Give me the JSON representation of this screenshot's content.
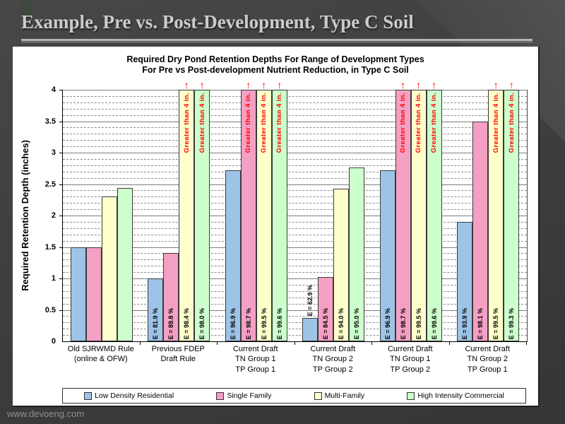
{
  "slide": {
    "title": "Example, Pre vs. Post-Development, Type C Soil",
    "footer_url": "www.devoeng.com"
  },
  "chart": {
    "title_line1": "Required Dry Pond Retention Depths For Range of Development Types",
    "title_line2": "For Pre vs Post-development Nutrient Reduction, in Type C Soil"
  },
  "chart_data": {
    "type": "bar",
    "title": "Required Dry Pond Retention Depths For Range of Development Types For Pre vs Post-development Nutrient Reduction, in Type C Soil",
    "ylabel": "Required Retention Depth (inches)",
    "ylim": [
      0,
      4
    ],
    "ytick_step": 0.5,
    "minor_tick_step": 0.1,
    "grid": "major-solid-minor-dashed",
    "legend_position": "bottom",
    "overflow_label": "Greater than 4 in.",
    "categories": [
      [
        "Old SJRWMD Rule",
        "(online & OFW)"
      ],
      [
        "Previous FDEP",
        "Draft Rule"
      ],
      [
        "Current Draft",
        "TN Group 1",
        "TP Group 1"
      ],
      [
        "Current Draft",
        "TN Group 2",
        "TP Group 2"
      ],
      [
        "Current Draft",
        "TN Group 1",
        "TP Group 2"
      ],
      [
        "Current Draft",
        "TN Group 2",
        "TP Group 1"
      ]
    ],
    "series": [
      {
        "name": "Low Density Residential",
        "color": "#9DC3E6",
        "values": [
          1.5,
          1.0,
          2.72,
          0.37,
          2.72,
          1.9
        ],
        "bar_labels": [
          "",
          "E = 81.9 %",
          "E = 96.9 %",
          "E = 62.9 %",
          "E = 96.9 %",
          "E = 93.9 %"
        ],
        "exceeds_axis": [
          false,
          false,
          false,
          false,
          false,
          false
        ]
      },
      {
        "name": "Single Family",
        "color": "#F4A0C4",
        "values": [
          1.5,
          1.4,
          4,
          1.02,
          4,
          3.5
        ],
        "bar_labels": [
          "",
          "E = 89.8 %",
          "E = 98.7 %",
          "E = 84.5 %",
          "E = 98.7 %",
          "E = 98.1 %"
        ],
        "exceeds_axis": [
          false,
          false,
          true,
          false,
          true,
          false
        ]
      },
      {
        "name": "Multi-Family",
        "color": "#FFFFCC",
        "values": [
          2.3,
          4,
          4,
          2.43,
          4,
          4
        ],
        "bar_labels": [
          "",
          "E = 98.4 %",
          "E = 99.5 %",
          "E = 94.0 %",
          "E = 99.5 %",
          "E = 99.5 %"
        ],
        "exceeds_axis": [
          false,
          true,
          true,
          false,
          true,
          true
        ]
      },
      {
        "name": "High Intensity Commercial",
        "color": "#CCFFCC",
        "values": [
          2.44,
          4,
          4,
          2.76,
          4,
          4
        ],
        "bar_labels": [
          "",
          "E = 98.0 %",
          "E = 99.6 %",
          "E = 95.0 %",
          "E = 99.6 %",
          "E = 99.3 %"
        ],
        "exceeds_axis": [
          false,
          true,
          true,
          false,
          true,
          true
        ]
      }
    ]
  },
  "colors": {
    "slide_background": "#3F3F3F",
    "title_text": "#CBCBCB",
    "panel_background": "#FFFFFF",
    "overflow_text": "#FF0000",
    "bar_border": "#3A3A3A",
    "grid_major": "#7D7D7D",
    "grid_minor": "#8D8D8D"
  }
}
